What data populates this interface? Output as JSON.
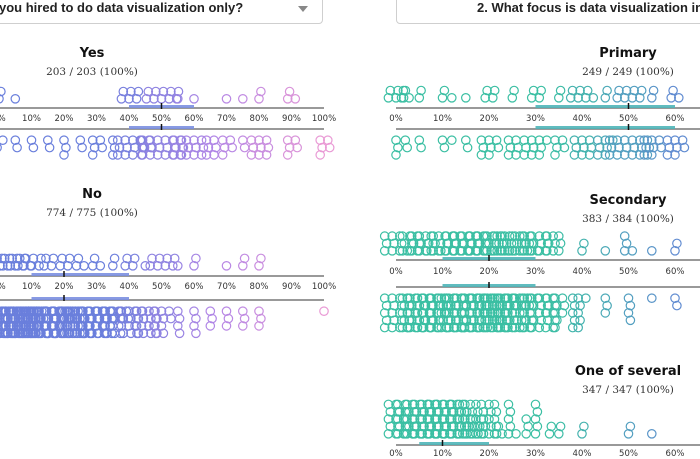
{
  "questions": {
    "left": {
      "label": "you hired to do data visualization only?"
    },
    "right": {
      "label": "2. What focus is data visualization in"
    }
  },
  "chart_data": [
    {
      "type": "beeswarm",
      "question": "you hired to do data visualization only?",
      "title": "Yes",
      "subtitle": "203 / 203 (100%)",
      "x_unit": "percent of work time spent on data visualization",
      "xlim": [
        0,
        100
      ],
      "ticks": [
        0,
        10,
        20,
        30,
        40,
        50,
        60,
        70,
        80,
        90,
        100
      ],
      "tick_labels": [
        "0%",
        "10%",
        "20%",
        "30%",
        "40%",
        "50%",
        "60%",
        "70%",
        "80%",
        "90%",
        "100%"
      ],
      "median": 50,
      "iqr": [
        40,
        60
      ],
      "top_group_counts": {
        "0": 2,
        "5": 1,
        "40": 6,
        "50": 10,
        "55": 1,
        "60": 1,
        "70": 1,
        "75": 1,
        "80": 2,
        "90": 3
      },
      "bottom_group_counts": {
        "0": 4,
        "5": 2,
        "10": 2,
        "15": 2,
        "20": 3,
        "25": 2,
        "30": 5,
        "35": 3,
        "40": 11,
        "45": 5,
        "50": 18,
        "55": 6,
        "60": 9,
        "65": 6,
        "70": 5,
        "75": 2,
        "80": 9,
        "90": 5,
        "100": 5
      }
    },
    {
      "type": "beeswarm",
      "question": "you hired to do data visualization only?",
      "title": "No",
      "subtitle": "774 / 775 (100%)",
      "x_unit": "percent of work time spent on data visualization",
      "xlim": [
        0,
        100
      ],
      "ticks": [
        0,
        10,
        20,
        30,
        40,
        50,
        60,
        70,
        80,
        90,
        100
      ],
      "tick_labels": [
        "0%",
        "10%",
        "20%",
        "30%",
        "40%",
        "50%",
        "60%",
        "70%",
        "80%",
        "90%",
        "100%"
      ],
      "median": 20,
      "iqr": [
        10,
        40
      ],
      "top_group_counts": {
        "0": 12,
        "5": 9,
        "10": 6,
        "15": 4,
        "20": 4,
        "25": 3,
        "30": 3,
        "35": 2,
        "40": 4,
        "45": 1,
        "50": 8,
        "55": 1,
        "60": 2,
        "70": 1,
        "75": 2,
        "80": 2
      },
      "bottom_group_counts": {
        "0": 40,
        "2": 25,
        "5": 30,
        "8": 22,
        "10": 34,
        "12": 20,
        "15": 24,
        "18": 14,
        "20": 24,
        "22": 12,
        "25": 20,
        "28": 10,
        "30": 18,
        "33": 8,
        "35": 10,
        "38": 6,
        "40": 12,
        "43": 5,
        "45": 8,
        "48": 4,
        "50": 10,
        "55": 4,
        "60": 4,
        "65": 3,
        "70": 3,
        "75": 3,
        "80": 3,
        "100": 1
      }
    },
    {
      "type": "beeswarm",
      "question": "2. What focus is data visualization in",
      "title": "Primary",
      "subtitle": "249 / 249 (100%)",
      "x_unit": "percent of work time spent on data visualization",
      "xlim": [
        0,
        60
      ],
      "ticks": [
        0,
        10,
        20,
        30,
        40,
        50,
        60
      ],
      "tick_labels": [
        "0%",
        "10%",
        "20%",
        "30%",
        "40%",
        "50%",
        "60%"
      ],
      "median": 50,
      "iqr": [
        30,
        60
      ],
      "top_group_counts": {
        "0": 6,
        "2": 3,
        "5": 2,
        "10": 2,
        "12": 1,
        "15": 1,
        "20": 4,
        "25": 2,
        "30": 4,
        "35": 2,
        "40": 7,
        "45": 2,
        "50": 8,
        "55": 2,
        "60": 3
      },
      "bottom_group_counts": {
        "0": 3,
        "2": 2,
        "5": 2,
        "10": 2,
        "12": 1,
        "15": 2,
        "20": 8,
        "25": 6,
        "30": 10,
        "35": 5,
        "40": 9,
        "45": 7,
        "50": 18,
        "55": 8,
        "60": 8
      }
    },
    {
      "type": "beeswarm",
      "question": "2. What focus is data visualization in",
      "title": "Secondary",
      "subtitle": "383 / 384 (100%)",
      "x_unit": "percent of work time spent on data visualization",
      "xlim": [
        0,
        60
      ],
      "ticks": [
        0,
        10,
        20,
        30,
        40,
        50,
        60
      ],
      "tick_labels": [
        "0%",
        "10%",
        "20%",
        "30%",
        "40%",
        "50%",
        "60%"
      ],
      "median": 20,
      "iqr": [
        10,
        30
      ],
      "top_group_counts": {
        "0": 10,
        "3": 9,
        "5": 8,
        "8": 7,
        "10": 12,
        "13": 10,
        "15": 12,
        "18": 10,
        "20": 16,
        "22": 12,
        "25": 14,
        "28": 10,
        "30": 12,
        "33": 6,
        "35": 3,
        "40": 2,
        "45": 1,
        "50": 4,
        "55": 1,
        "60": 2
      },
      "bottom_group_counts": {
        "0": 20,
        "3": 15,
        "5": 20,
        "8": 18,
        "10": 30,
        "13": 22,
        "15": 28,
        "18": 24,
        "20": 30,
        "22": 22,
        "25": 22,
        "28": 16,
        "30": 18,
        "33": 10,
        "35": 8,
        "38": 5,
        "40": 6,
        "45": 3,
        "50": 4,
        "55": 1,
        "60": 2
      }
    },
    {
      "type": "beeswarm",
      "question": "2. What focus is data visualization in",
      "title": "One of several",
      "subtitle": "347 / 347 (100%)",
      "x_unit": "percent of work time spent on data visualization",
      "xlim": [
        0,
        60
      ],
      "ticks": [
        0,
        10,
        20,
        30,
        40,
        50,
        60
      ],
      "tick_labels": [
        "0%",
        "10%",
        "20%",
        "30%",
        "40%",
        "50%",
        "60%"
      ],
      "median": 10,
      "iqr": [
        5,
        20
      ],
      "top_group_counts": {
        "0": 14,
        "2": 12,
        "4": 14,
        "6": 16,
        "8": 18,
        "10": 24,
        "12": 22,
        "14": 18,
        "16": 12,
        "18": 8,
        "20": 12,
        "22": 6,
        "25": 6,
        "28": 3,
        "30": 5,
        "33": 2,
        "35": 2,
        "40": 2,
        "50": 2,
        "55": 1
      }
    }
  ],
  "colors": {
    "teal": "#3bbfa3",
    "blue": "#6a7fdc",
    "violet": "#b486e6",
    "pink": "#e99ad5",
    "axis": "#333333",
    "iqr_left": "#7b8fe0",
    "iqr_right": "#4fb5b8"
  }
}
